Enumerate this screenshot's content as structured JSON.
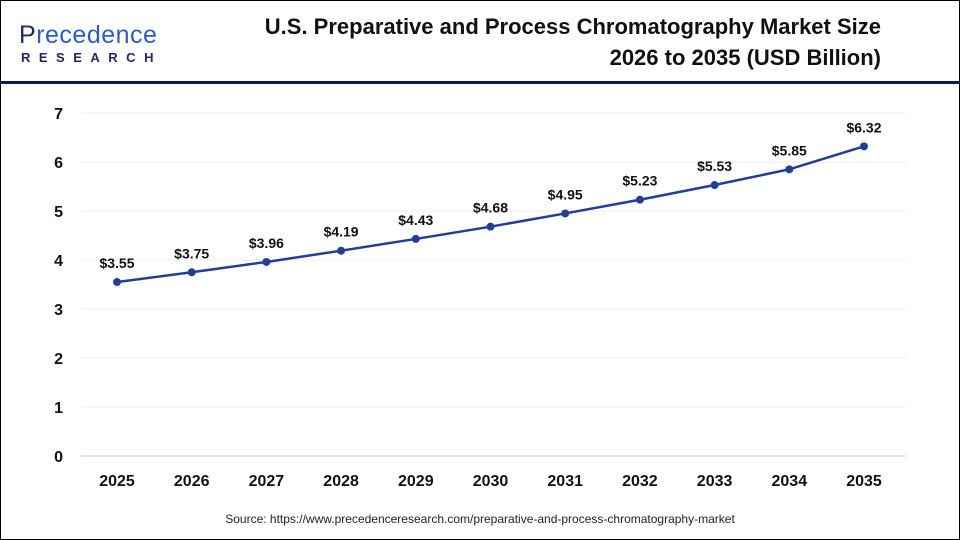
{
  "logo": {
    "line1_first": "P",
    "line1_rest": "recedence",
    "line2": "RESEARCH"
  },
  "title_line1": "U.S. Preparative and Process Chromatography Market Size",
  "title_line2": "2026 to 2035 (USD Billion)",
  "source": "Source: https://www.precedenceresearch.com/preparative-and-process-chromatography-market",
  "chart_data": {
    "type": "line",
    "title": "U.S. Preparative and Process Chromatography Market Size 2026 to 2035 (USD Billion)",
    "categories": [
      "2025",
      "2026",
      "2027",
      "2028",
      "2029",
      "2030",
      "2031",
      "2032",
      "2033",
      "2034",
      "2035"
    ],
    "series": [
      {
        "values": [
          3.55,
          3.75,
          3.96,
          4.19,
          4.43,
          4.68,
          4.95,
          5.23,
          5.53,
          5.85,
          6.32
        ],
        "labels": [
          "$3.55",
          "$3.75",
          "$3.96",
          "$4.19",
          "$4.43",
          "$4.68",
          "$4.95",
          "$5.23",
          "$5.53",
          "$5.85",
          "$6.32"
        ]
      }
    ],
    "yticks": [
      "0",
      "1",
      "2",
      "3",
      "4",
      "5",
      "6",
      "7"
    ],
    "ylim": [
      0,
      7
    ],
    "grid": true,
    "line_color": "#1f3f9a"
  }
}
